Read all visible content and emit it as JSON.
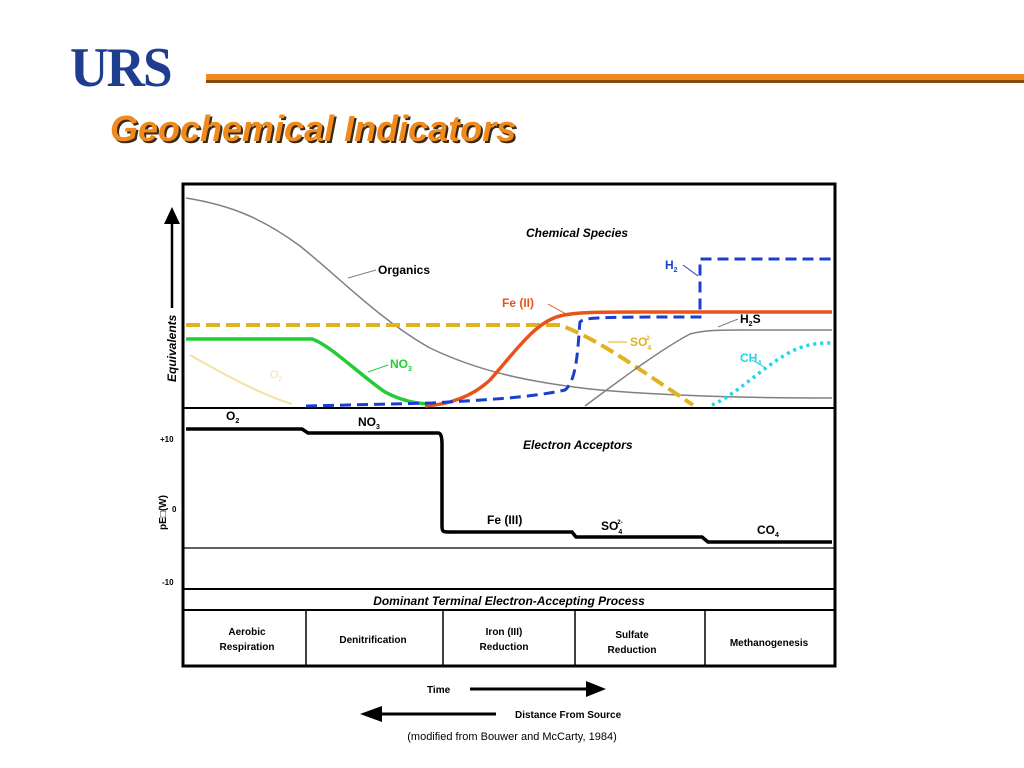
{
  "header": {
    "logo": "URS",
    "title": "Geochemical Indicators"
  },
  "top_panel": {
    "heading": "Chemical Species",
    "y_axis_label": "Equivalents",
    "species": [
      {
        "label": "Organics",
        "color": "#808080"
      },
      {
        "label": "Fe (II)",
        "color": "#e8531c"
      },
      {
        "label": "H",
        "sub": "2",
        "color": "#1a3fd0"
      },
      {
        "label": "H",
        "sub": "2",
        "suffix": "S",
        "color": "#000000"
      },
      {
        "label": "SO",
        "sub": "4",
        "sup": "2-",
        "color": "#e0b21e"
      },
      {
        "label": "NO",
        "sub": "3",
        "color": "#22cc33"
      },
      {
        "label": "CH",
        "sub": "4",
        "color": "#22d4e8"
      },
      {
        "label": "O",
        "sub": "2",
        "color": "#f4e1a0"
      }
    ]
  },
  "middle_panel": {
    "heading": "Electron Acceptors",
    "y_axis_label": "pE□(W)",
    "ticks": [
      "+10",
      "0",
      "-10"
    ],
    "steps": [
      {
        "label": "O",
        "sub": "2"
      },
      {
        "label": "NO",
        "sub": "3"
      },
      {
        "label": "Fe (III)"
      },
      {
        "label": "SO",
        "sub": "4",
        "sup": "2-"
      },
      {
        "label": "CO",
        "sub": "4"
      }
    ]
  },
  "process_panel": {
    "heading": "Dominant Terminal Electron-Accepting Process",
    "columns": [
      [
        "Aerobic",
        "Respiration"
      ],
      [
        "Denitrification"
      ],
      [
        "Iron (III)",
        "Reduction"
      ],
      [
        "Sulfate",
        "Reduction"
      ],
      [
        "Methanogenesis"
      ]
    ]
  },
  "arrows": {
    "time": "Time",
    "distance": "Distance From Source"
  },
  "caption": "(modified from Bouwer and McCarty, 1984)"
}
